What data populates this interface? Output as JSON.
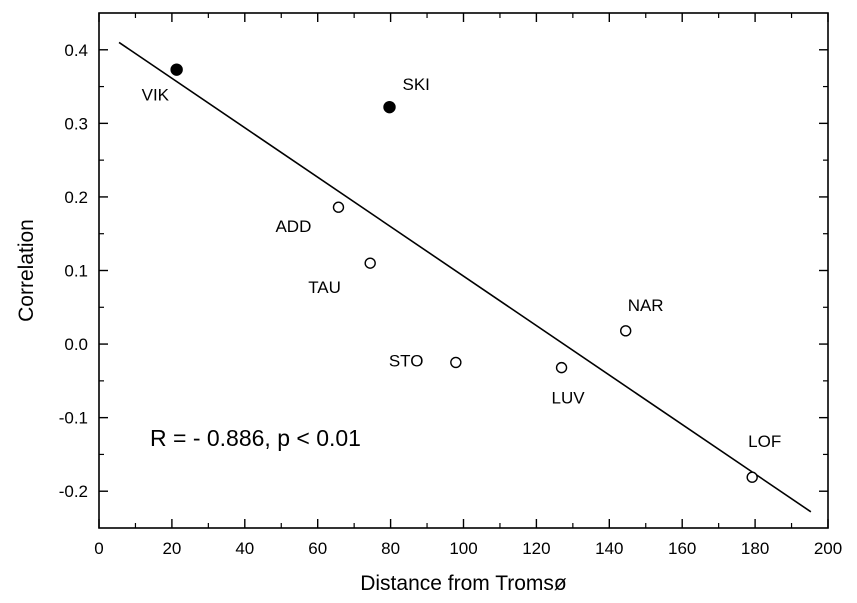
{
  "chart_data": {
    "type": "scatter",
    "title": "",
    "xlabel": "Distance from Tromsø",
    "ylabel": "Correlation",
    "xlim": [
      0,
      200
    ],
    "ylim": [
      -0.25,
      0.45
    ],
    "x_ticks": [
      0,
      20,
      40,
      60,
      80,
      100,
      120,
      140,
      160,
      180,
      200
    ],
    "x_tick_labels": [
      "0",
      "20",
      "40",
      "60",
      "80",
      "100",
      "120",
      "140",
      "160",
      "180",
      "200"
    ],
    "y_ticks": [
      0.4,
      0.3,
      0.2,
      0.1,
      0.0,
      -0.1,
      -0.2
    ],
    "y_tick_labels": [
      "0.4",
      "0.3",
      "0.2",
      "0.1",
      "0.0",
      "-0.1",
      "-0.2"
    ],
    "grid": false,
    "points": [
      {
        "label": "VIK",
        "x": 21.3,
        "y": 0.373,
        "filled": true
      },
      {
        "label": "SKI",
        "x": 79.7,
        "y": 0.322,
        "filled": true
      },
      {
        "label": "ADD",
        "x": 65.7,
        "y": 0.186,
        "filled": false
      },
      {
        "label": "TAU",
        "x": 74.4,
        "y": 0.11,
        "filled": false
      },
      {
        "label": "STO",
        "x": 97.9,
        "y": -0.025,
        "filled": false
      },
      {
        "label": "LUV",
        "x": 126.9,
        "y": -0.032,
        "filled": false
      },
      {
        "label": "NAR",
        "x": 144.5,
        "y": 0.018,
        "filled": false
      },
      {
        "label": "LOF",
        "x": 179.2,
        "y": -0.181,
        "filled": false
      }
    ],
    "fit_line": {
      "x": [
        5.5,
        195.3
      ],
      "y": [
        0.41,
        -0.228
      ]
    },
    "annotation": "R = - 0.886, p < 0.01"
  },
  "colors": {
    "ink": "#000000",
    "background": "#ffffff"
  }
}
